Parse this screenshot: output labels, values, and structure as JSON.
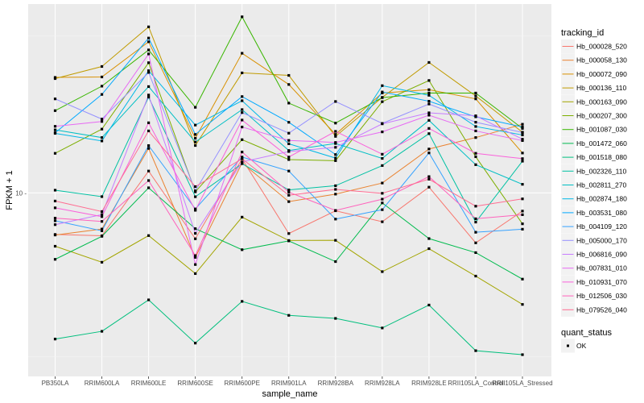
{
  "chart_data": {
    "type": "line",
    "xlabel": "sample_name",
    "ylabel": "FPKM + 1",
    "y_scale": "log10",
    "ylim": [
      2.6,
      40.0
    ],
    "y_ticks": [
      10
    ],
    "y_tick_labels": [
      "10 -"
    ],
    "grid": true,
    "categories": [
      "PB350LA",
      "RRIM600LA",
      "RRIM600LE",
      "RRIM600SE",
      "RRIM600PE",
      "RRIM901LA",
      "RRIM928BA",
      "RRIM928LA",
      "RRIM928LE",
      "RRII105LA_Control",
      "RRII105LA_Stressed"
    ],
    "legend_position": "right",
    "series": [
      {
        "name": "Hb_000028_520",
        "color": "#F8766D",
        "values": [
          7.37,
          7.3,
          11.74,
          7.14,
          12.84,
          7.42,
          8.77,
          8.09,
          10.43,
          6.93,
          8.75
        ]
      },
      {
        "name": "Hb_000058_130",
        "color": "#EA8331",
        "values": [
          7.34,
          7.67,
          13.86,
          6.23,
          12.46,
          9.38,
          9.91,
          10.75,
          13.8,
          15.01,
          16.55
        ]
      },
      {
        "name": "Hb_000072_090",
        "color": "#D89000",
        "values": [
          23.34,
          23.42,
          30.32,
          14.93,
          27.87,
          22.16,
          15.36,
          20.82,
          21.33,
          19.94,
          13.4
        ]
      },
      {
        "name": "Hb_000136_110",
        "color": "#C09B00",
        "values": [
          23.14,
          25.29,
          33.83,
          14.16,
          24.13,
          23.69,
          15.14,
          20.16,
          26.05,
          20.37,
          15.61
        ]
      },
      {
        "name": "Hb_000163_090",
        "color": "#A3A500",
        "values": [
          6.76,
          6.01,
          7.31,
          5.53,
          8.37,
          7.05,
          7.06,
          5.61,
          6.64,
          5.43,
          4.41
        ]
      },
      {
        "name": "Hb_000207_300",
        "color": "#7CAE00",
        "values": [
          13.37,
          15.97,
          26.0,
          10.08,
          14.78,
          12.77,
          12.67,
          19.53,
          22.82,
          13.04,
          7.97
        ]
      },
      {
        "name": "Hb_001087_030",
        "color": "#39B600",
        "values": [
          18.29,
          21.89,
          28.56,
          18.74,
          36.42,
          19.33,
          16.69,
          20.12,
          20.82,
          20.81,
          16.05
        ]
      },
      {
        "name": "Hb_001472_060",
        "color": "#00BB4E",
        "values": [
          6.14,
          7.27,
          10.38,
          7.69,
          6.59,
          7.03,
          6.04,
          9.29,
          7.15,
          6.45,
          5.31
        ]
      },
      {
        "name": "Hb_001518_080",
        "color": "#00BF7D",
        "values": [
          3.42,
          3.62,
          4.56,
          3.32,
          4.51,
          4.07,
          3.98,
          3.71,
          4.39,
          3.14,
          3.05
        ]
      },
      {
        "name": "Hb_002326_110",
        "color": "#00C1A3",
        "values": [
          10.2,
          9.73,
          20.2,
          9.72,
          12.39,
          10.22,
          10.54,
          12.22,
          15.45,
          8.07,
          12.62
        ]
      },
      {
        "name": "Hb_002811_270",
        "color": "#00BFC4",
        "values": [
          15.88,
          15.01,
          21.82,
          14.53,
          18.43,
          13.65,
          14.37,
          12.88,
          17.03,
          12.3,
          10.65
        ]
      },
      {
        "name": "Hb_002874_180",
        "color": "#00B8E7",
        "values": [
          15.48,
          14.64,
          24.52,
          16.45,
          19.67,
          14.34,
          12.91,
          21.97,
          20.47,
          16.28,
          15.3
        ]
      },
      {
        "name": "Hb_003531_080",
        "color": "#00A9FF",
        "values": [
          15.55,
          20.6,
          31.16,
          15.36,
          20.28,
          16.79,
          13.25,
          20.97,
          19.6,
          17.48,
          16.22
        ]
      },
      {
        "name": "Hb_004109_120",
        "color": "#35A2FF",
        "values": [
          8.15,
          7.57,
          14.15,
          8.89,
          13.01,
          11.74,
          8.25,
          8.84,
          13.41,
          7.49,
          7.66
        ]
      },
      {
        "name": "Hb_005000_170",
        "color": "#9590FF",
        "values": [
          19.94,
          17.19,
          24.21,
          10.15,
          18.03,
          15.5,
          19.56,
          16.65,
          19.2,
          16.8,
          15.58
        ]
      },
      {
        "name": "Hb_006816_090",
        "color": "#C77CFF",
        "values": [
          7.92,
          8.53,
          20.51,
          7.43,
          12.55,
          13.55,
          13.97,
          16.6,
          18.0,
          17.61,
          14.83
        ]
      },
      {
        "name": "Hb_007831_010",
        "color": "#E76BF3",
        "values": [
          16.3,
          16.89,
          27.73,
          5.91,
          16.22,
          14.7,
          14.48,
          15.65,
          17.69,
          15.76,
          14.68
        ]
      },
      {
        "name": "Hb_010931_070",
        "color": "#FA62DB",
        "values": [
          8.96,
          8.4,
          16.73,
          8.8,
          17.07,
          13.01,
          15.71,
          13.28,
          16.05,
          13.37,
          12.86
        ]
      },
      {
        "name": "Hb_012506_030",
        "color": "#FF62BC",
        "values": [
          8.31,
          8.11,
          10.95,
          6.31,
          13.5,
          10.06,
          8.79,
          9.55,
          11.27,
          8.27,
          8.52
        ]
      },
      {
        "name": "Hb_079526_040",
        "color": "#FF6C91",
        "values": [
          9.42,
          8.72,
          15.76,
          10.47,
          12.85,
          9.83,
          10.26,
          9.97,
          11.06,
          9.07,
          9.57
        ]
      }
    ],
    "legend_title": "tracking_id",
    "shape_legend": {
      "title": "quant_status",
      "items": [
        "OK"
      ]
    }
  }
}
